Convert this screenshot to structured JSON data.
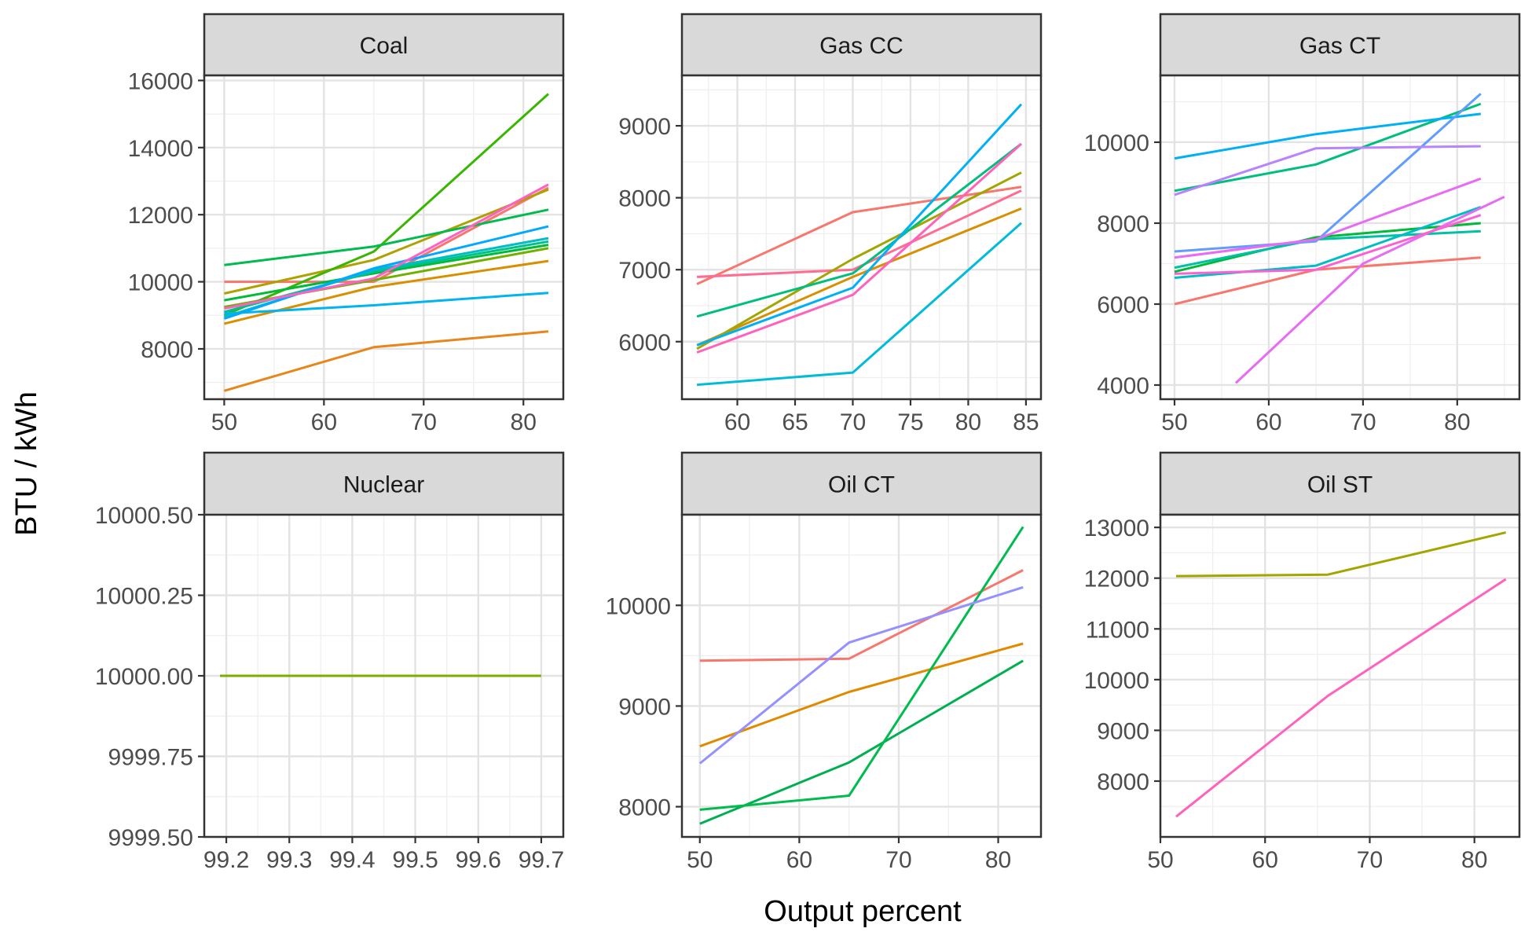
{
  "figure": {
    "ylabel": "BTU / kWh",
    "xlabel": "Output percent"
  },
  "chart_data": [
    {
      "type": "line",
      "title": "Coal",
      "xlim": [
        48,
        84
      ],
      "ylim": [
        6500,
        16150
      ],
      "xticks": [
        50,
        60,
        70,
        80
      ],
      "yticks": [
        8000,
        10000,
        12000,
        14000,
        16000
      ],
      "series": [
        {
          "color": "#F8766D",
          "x": [
            50,
            65,
            82.5
          ],
          "y": [
            10000,
            10000,
            12800
          ]
        },
        {
          "color": "#E7861B",
          "x": [
            50,
            65,
            82.5
          ],
          "y": [
            6750,
            8050,
            8520
          ]
        },
        {
          "color": "#D89000",
          "x": [
            50,
            65,
            82.5
          ],
          "y": [
            8750,
            9850,
            10620
          ]
        },
        {
          "color": "#AEA200",
          "x": [
            50,
            65,
            82.5
          ],
          "y": [
            9650,
            10650,
            12750
          ]
        },
        {
          "color": "#72B000",
          "x": [
            50,
            65,
            82.5
          ],
          "y": [
            9250,
            10050,
            11000
          ]
        },
        {
          "color": "#39B600",
          "x": [
            50,
            65,
            82.5
          ],
          "y": [
            9000,
            10900,
            15600
          ]
        },
        {
          "color": "#00BA38",
          "x": [
            50,
            65,
            82.5
          ],
          "y": [
            9450,
            10250,
            11100
          ]
        },
        {
          "color": "#00BB4E",
          "x": [
            50,
            65,
            82.5
          ],
          "y": [
            10500,
            11050,
            12150
          ]
        },
        {
          "color": "#00C08B",
          "x": [
            50,
            65,
            82.5
          ],
          "y": [
            9100,
            10300,
            11200
          ]
        },
        {
          "color": "#00BFC4",
          "x": [
            50,
            65,
            82.5
          ],
          "y": [
            8950,
            10350,
            11300
          ]
        },
        {
          "color": "#00B4F0",
          "x": [
            50,
            65,
            82.5
          ],
          "y": [
            9050,
            9300,
            9670
          ]
        },
        {
          "color": "#00A9FF",
          "x": [
            50,
            65,
            82.5
          ],
          "y": [
            8900,
            10400,
            11650
          ]
        },
        {
          "color": "#FF61C3",
          "x": [
            50,
            65,
            82.5
          ],
          "y": [
            9200,
            10100,
            12900
          ]
        }
      ]
    },
    {
      "type": "line",
      "title": "Gas CC",
      "xlim": [
        55.2,
        86.3
      ],
      "ylim": [
        5200,
        9700
      ],
      "xticks": [
        60,
        65,
        70,
        75,
        80,
        85
      ],
      "yticks": [
        6000,
        7000,
        8000,
        9000
      ],
      "series": [
        {
          "color": "#F8766D",
          "x": [
            56.5,
            70,
            84.6
          ],
          "y": [
            6800,
            7800,
            8150
          ]
        },
        {
          "color": "#FF6C91",
          "x": [
            56.5,
            70,
            84.6
          ],
          "y": [
            6900,
            7000,
            8100
          ]
        },
        {
          "color": "#D89000",
          "x": [
            56.5,
            70,
            84.6
          ],
          "y": [
            5950,
            6900,
            7850
          ]
        },
        {
          "color": "#A3A500",
          "x": [
            56.5,
            70,
            84.6
          ],
          "y": [
            5900,
            7150,
            8350
          ]
        },
        {
          "color": "#00BF7D",
          "x": [
            56.5,
            70,
            84.6
          ],
          "y": [
            6350,
            6950,
            8750
          ]
        },
        {
          "color": "#00BCD8",
          "x": [
            56.5,
            70,
            84.6
          ],
          "y": [
            5400,
            5570,
            7650
          ]
        },
        {
          "color": "#00B0F6",
          "x": [
            56.5,
            70,
            84.6
          ],
          "y": [
            5950,
            6750,
            9300
          ]
        },
        {
          "color": "#FF62BC",
          "x": [
            56.5,
            70,
            84.6
          ],
          "y": [
            5850,
            6650,
            8750
          ]
        }
      ]
    },
    {
      "type": "line",
      "title": "Gas CT",
      "xlim": [
        48.5,
        86.6
      ],
      "ylim": [
        3650,
        11650
      ],
      "xticks": [
        50,
        60,
        70,
        80
      ],
      "yticks": [
        4000,
        6000,
        8000,
        10000
      ],
      "series": [
        {
          "color": "#F8766D",
          "x": [
            50,
            65,
            82.5
          ],
          "y": [
            6000,
            6850,
            7150
          ]
        },
        {
          "color": "#00BA38",
          "x": [
            50,
            65,
            82.5
          ],
          "y": [
            6800,
            7650,
            8000
          ]
        },
        {
          "color": "#00BF7D",
          "x": [
            50,
            65,
            82.5
          ],
          "y": [
            8800,
            9450,
            10950
          ]
        },
        {
          "color": "#00C1A3",
          "x": [
            50,
            65,
            82.5
          ],
          "y": [
            6900,
            7600,
            7800
          ]
        },
        {
          "color": "#00BFC4",
          "x": [
            50,
            65,
            82.5
          ],
          "y": [
            6650,
            6950,
            8400
          ]
        },
        {
          "color": "#00B0F6",
          "x": [
            50,
            65,
            82.5
          ],
          "y": [
            9600,
            10200,
            10700
          ]
        },
        {
          "color": "#619CFF",
          "x": [
            50,
            65,
            82.5
          ],
          "y": [
            7300,
            7550,
            11200
          ]
        },
        {
          "color": "#B983FF",
          "x": [
            50,
            65,
            82.5
          ],
          "y": [
            8700,
            9850,
            9900
          ]
        },
        {
          "color": "#E76BF3",
          "x": [
            50,
            65,
            82.5
          ],
          "y": [
            7150,
            7600,
            9100
          ]
        },
        {
          "color": "#E76BF3",
          "x": [
            56.5,
            70,
            85
          ],
          "y": [
            4050,
            7000,
            8650
          ]
        },
        {
          "color": "#FD61D1",
          "x": [
            50,
            65,
            82.5
          ],
          "y": [
            6750,
            6850,
            8200
          ]
        }
      ]
    },
    {
      "type": "line",
      "title": "Nuclear",
      "xlim": [
        99.165,
        99.735
      ],
      "ylim": [
        9999.5,
        10000.5
      ],
      "xticks": [
        99.2,
        99.3,
        99.4,
        99.5,
        99.6,
        99.7
      ],
      "xticklabels": [
        "99.2",
        "99.3",
        "99.4",
        "99.5",
        "99.6",
        "99.7"
      ],
      "yticks": [
        9999.5,
        9999.75,
        10000.0,
        10000.25,
        10000.5
      ],
      "yticklabels": [
        "9999.50",
        "9999.75",
        "10000.00",
        "10000.25",
        "10000.50"
      ],
      "series": [
        {
          "color": "#7CAE00",
          "x": [
            99.19,
            99.7
          ],
          "y": [
            10000,
            10000
          ]
        }
      ]
    },
    {
      "type": "line",
      "title": "Oil CT",
      "xlim": [
        48.2,
        84.3
      ],
      "ylim": [
        7700,
        10900
      ],
      "xticks": [
        50,
        60,
        70,
        80
      ],
      "yticks": [
        8000,
        9000,
        10000
      ],
      "series": [
        {
          "color": "#F8766D",
          "x": [
            50,
            65,
            82.5
          ],
          "y": [
            9450,
            9470,
            10350
          ]
        },
        {
          "color": "#E18A00",
          "x": [
            50,
            65,
            82.5
          ],
          "y": [
            8600,
            9140,
            9620
          ]
        },
        {
          "color": "#00B050",
          "x": [
            50,
            65,
            82.5
          ],
          "y": [
            7830,
            8440,
            9450
          ]
        },
        {
          "color": "#00BB4E",
          "x": [
            50,
            65,
            82.5
          ],
          "y": [
            7970,
            8110,
            10780
          ]
        },
        {
          "color": "#9590FF",
          "x": [
            50,
            65,
            82.5
          ],
          "y": [
            8430,
            9630,
            10180
          ]
        }
      ]
    },
    {
      "type": "line",
      "title": "Oil ST",
      "xlim": [
        50,
        84.3
      ],
      "ylim": [
        6900,
        13250
      ],
      "xticks": [
        50,
        60,
        70,
        80
      ],
      "yticks": [
        8000,
        9000,
        10000,
        11000,
        12000,
        13000
      ],
      "series": [
        {
          "color": "#A3A500",
          "x": [
            51.5,
            66,
            83
          ],
          "y": [
            12040,
            12070,
            12900
          ]
        },
        {
          "color": "#FF62BC",
          "x": [
            51.5,
            66,
            83
          ],
          "y": [
            7300,
            9680,
            11980
          ]
        }
      ]
    }
  ]
}
